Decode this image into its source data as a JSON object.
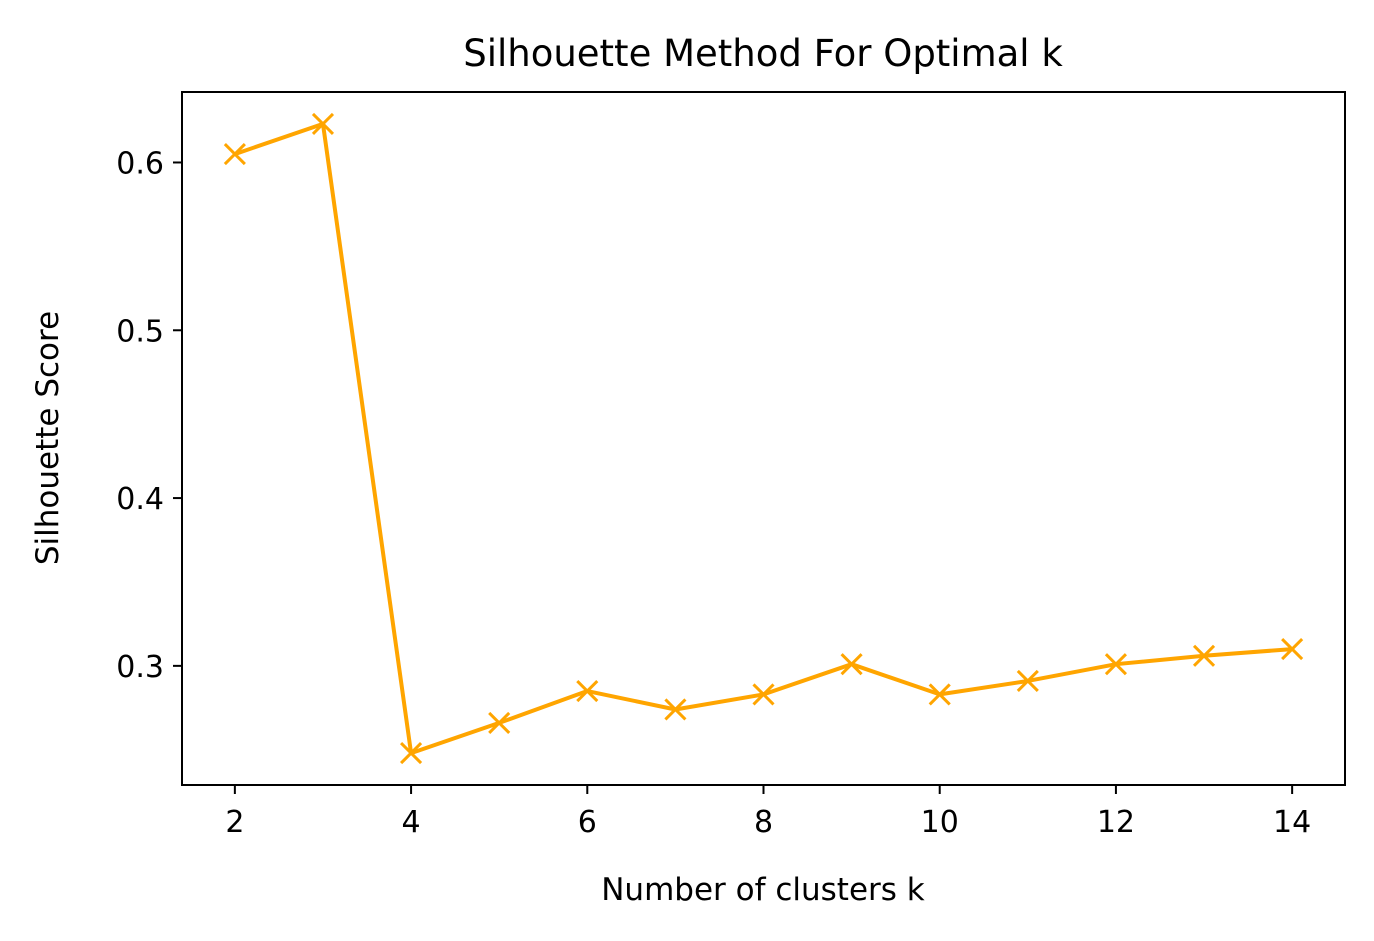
{
  "chart_data": {
    "type": "line",
    "title": "Silhouette Method For Optimal k",
    "xlabel": "Number of clusters k",
    "ylabel": "Silhouette Score",
    "x": [
      2,
      3,
      4,
      5,
      6,
      7,
      8,
      9,
      10,
      11,
      12,
      13,
      14
    ],
    "series": [
      {
        "values": [
          0.605,
          0.623,
          0.248,
          0.266,
          0.285,
          0.274,
          0.283,
          0.301,
          0.283,
          0.291,
          0.301,
          0.306,
          0.31
        ],
        "color": "#ffa500",
        "marker": "x"
      }
    ],
    "xticks": [
      "2",
      "4",
      "6",
      "8",
      "10",
      "12",
      "14"
    ],
    "yticks": [
      "0.3",
      "0.4",
      "0.5",
      "0.6"
    ],
    "xlim": [
      1.4,
      14.6
    ],
    "ylim": [
      0.229,
      0.642
    ],
    "grid": false
  }
}
